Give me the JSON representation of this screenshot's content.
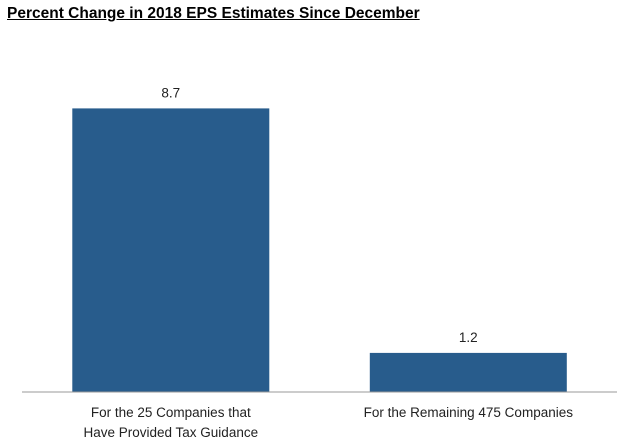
{
  "chart_data": {
    "type": "bar",
    "title": "Percent Change in 2018 EPS Estimates Since December",
    "categories": [
      [
        "For the 25 Companies that",
        "Have Provided Tax Guidance"
      ],
      [
        "For the Remaining 475 Companies"
      ]
    ],
    "values": [
      8.7,
      1.2
    ],
    "value_labels": [
      "8.7",
      "1.2"
    ],
    "ylim": [
      0,
      10.8
    ],
    "bar_color": "#285c8c",
    "axis_color": "#999999",
    "grid": false,
    "legend": "none"
  }
}
